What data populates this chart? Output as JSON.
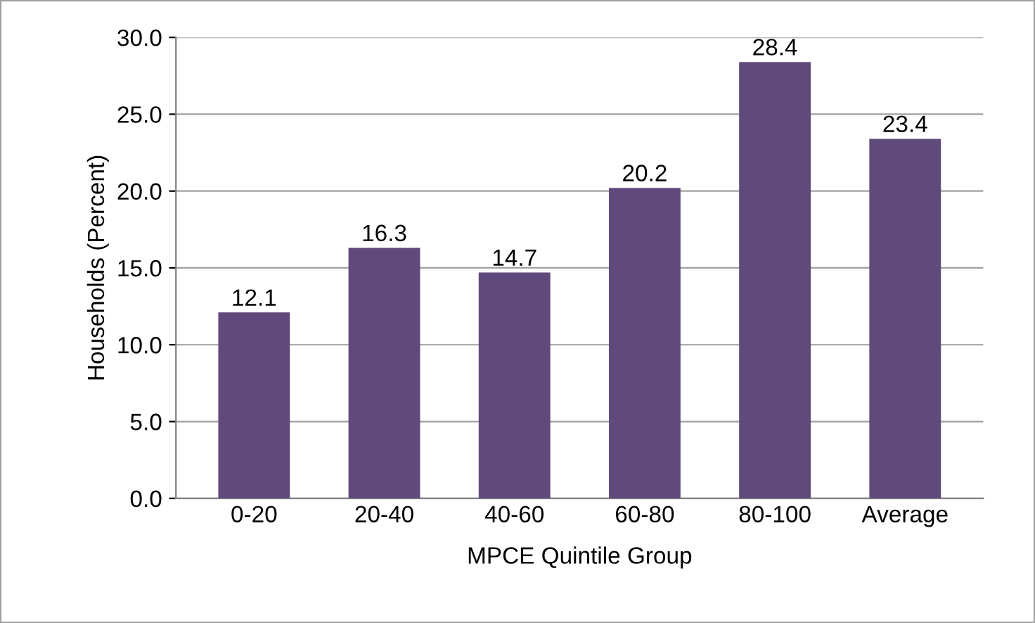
{
  "chart_data": {
    "type": "bar",
    "xlabel": "MPCE Quintile Group",
    "ylabel": "Households (Percent)",
    "categories": [
      "0-20",
      "20-40",
      "40-60",
      "60-80",
      "80-100",
      "Average"
    ],
    "values": [
      12.1,
      16.3,
      14.7,
      20.2,
      28.4,
      23.4
    ],
    "color": "#604a7b",
    "value_labels": [
      "12.1",
      "16.3",
      "14.7",
      "20.2",
      "28.4",
      "23.4"
    ],
    "ylim": [
      0,
      30
    ],
    "yticks": [
      {
        "value": 0,
        "label": "0.0"
      },
      {
        "value": 5,
        "label": "5.0"
      },
      {
        "value": 10,
        "label": "10.0"
      },
      {
        "value": 15,
        "label": "15.0"
      },
      {
        "value": 20,
        "label": "20.0"
      },
      {
        "value": 25,
        "label": "25.0"
      },
      {
        "value": 30,
        "label": "30.0"
      }
    ],
    "grid": "y"
  }
}
